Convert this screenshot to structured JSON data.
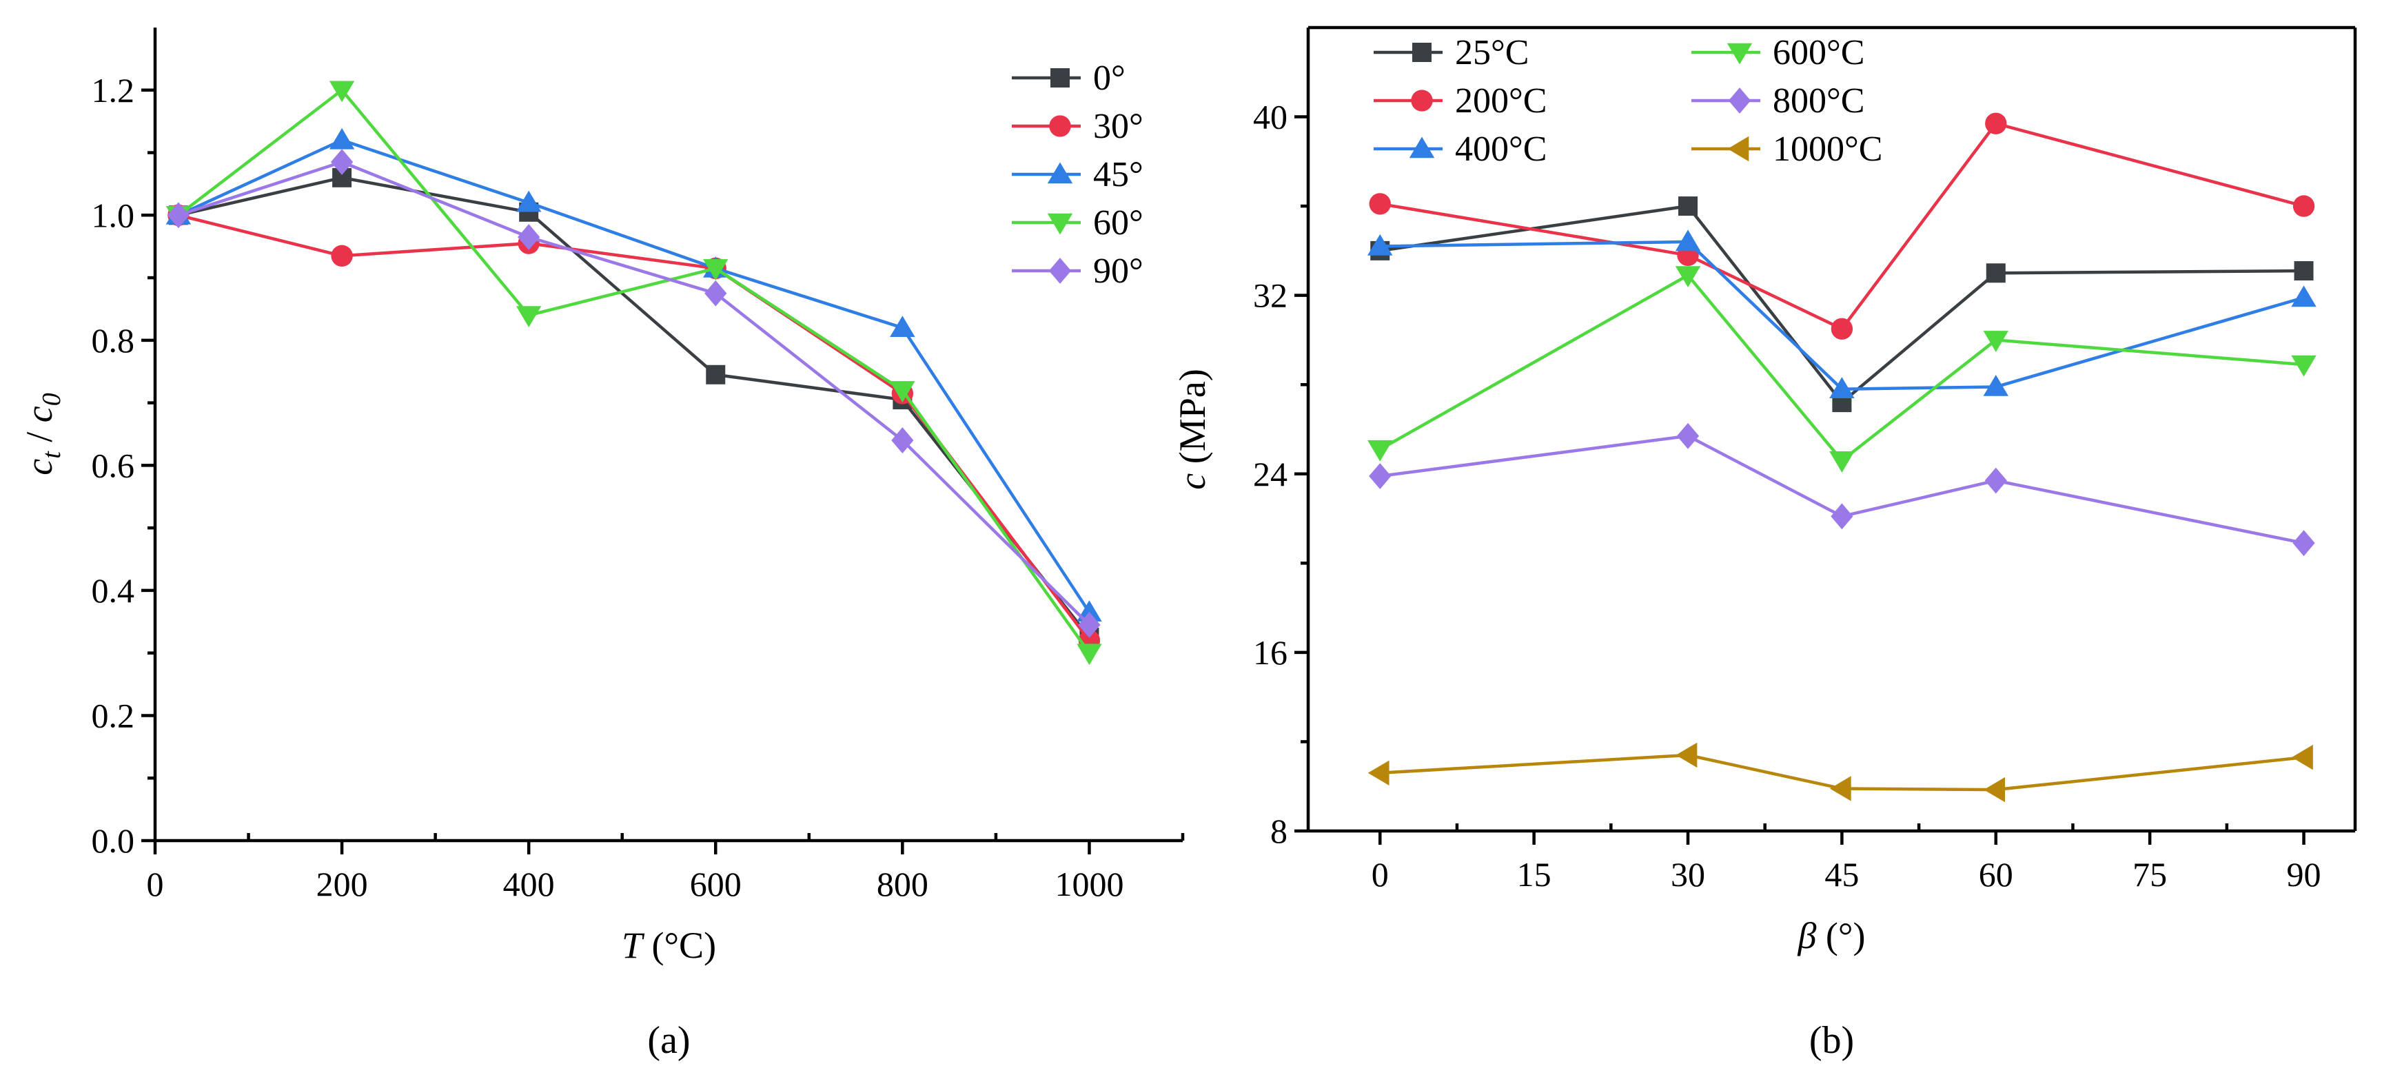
{
  "chart_data": [
    {
      "type": "line",
      "panel_label": "(a)",
      "xlabel_var": "T",
      "xlabel_unit": " (°C)",
      "ylabel_main": "c",
      "ylabel_sub1": "t",
      "ylabel_sep": " / ",
      "ylabel_sub2": "0",
      "xlim": [
        0,
        1100
      ],
      "ylim": [
        0,
        1.3
      ],
      "x_ticks": [
        0,
        200,
        400,
        600,
        800,
        1000
      ],
      "x_minor_ticks": [
        100,
        300,
        500,
        700,
        900,
        1100
      ],
      "y_ticks": [
        0.0,
        0.2,
        0.4,
        0.6,
        0.8,
        1.0,
        1.2
      ],
      "y_tick_labels": [
        "0.0",
        "0.2",
        "0.4",
        "0.6",
        "0.8",
        "1.0",
        "1.2"
      ],
      "y_minor_ticks": [
        0.1,
        0.3,
        0.5,
        0.7,
        0.9,
        1.1
      ],
      "x": [
        25,
        200,
        400,
        600,
        800,
        1000
      ],
      "legend_position": "top-right",
      "series": [
        {
          "name": "0°",
          "color": "#3a3f44",
          "marker": "square",
          "values": [
            1.0,
            1.06,
            1.005,
            0.745,
            0.705,
            0.325
          ]
        },
        {
          "name": "30°",
          "color": "#e8334a",
          "marker": "circle",
          "values": [
            1.0,
            0.935,
            0.955,
            0.915,
            0.715,
            0.32
          ]
        },
        {
          "name": "45°",
          "color": "#2f7ee6",
          "marker": "triangle-up",
          "values": [
            1.0,
            1.12,
            1.02,
            0.915,
            0.82,
            0.365
          ]
        },
        {
          "name": "60°",
          "color": "#4fd93f",
          "marker": "triangle-down",
          "values": [
            1.0,
            1.2,
            0.84,
            0.915,
            0.72,
            0.3
          ]
        },
        {
          "name": "90°",
          "color": "#9b78e8",
          "marker": "diamond",
          "values": [
            1.0,
            1.085,
            0.965,
            0.875,
            0.64,
            0.345
          ]
        }
      ]
    },
    {
      "type": "line",
      "panel_label": "(b)",
      "xlabel_var": "β",
      "xlabel_unit": " (°)",
      "ylabel_main": "c",
      "ylabel_unit": " (MPa)",
      "xlim": [
        -7,
        95
      ],
      "ylim": [
        8,
        44
      ],
      "x_ticks": [
        0,
        15,
        30,
        45,
        60,
        75,
        90
      ],
      "x_minor_ticks": [
        7.5,
        22.5,
        37.5,
        52.5,
        67.5,
        82.5
      ],
      "y_ticks": [
        8,
        16,
        24,
        32,
        40
      ],
      "y_tick_labels": [
        "8",
        "16",
        "24",
        "32",
        "40"
      ],
      "y_minor_ticks": [
        12,
        20,
        28,
        36
      ],
      "x": [
        0,
        30,
        45,
        60,
        90
      ],
      "legend_position": "top-left",
      "series": [
        {
          "name": "25°C",
          "color": "#3a3f44",
          "marker": "square",
          "values": [
            34.0,
            36.0,
            27.2,
            33.0,
            33.1
          ]
        },
        {
          "name": "200°C",
          "color": "#e8334a",
          "marker": "circle",
          "values": [
            36.1,
            33.8,
            30.5,
            39.7,
            36.0
          ]
        },
        {
          "name": "400°C",
          "color": "#2f7ee6",
          "marker": "triangle-up",
          "values": [
            34.2,
            34.4,
            27.8,
            27.9,
            31.9
          ]
        },
        {
          "name": "600°C",
          "color": "#4fd93f",
          "marker": "triangle-down",
          "values": [
            25.1,
            32.9,
            24.6,
            30.0,
            28.9
          ]
        },
        {
          "name": "800°C",
          "color": "#9b78e8",
          "marker": "diamond",
          "values": [
            23.9,
            25.7,
            22.1,
            23.7,
            20.9
          ]
        },
        {
          "name": "1000°C",
          "color": "#b8860b",
          "marker": "triangle-left",
          "values": [
            10.6,
            11.4,
            9.9,
            9.85,
            11.3
          ]
        }
      ]
    }
  ]
}
